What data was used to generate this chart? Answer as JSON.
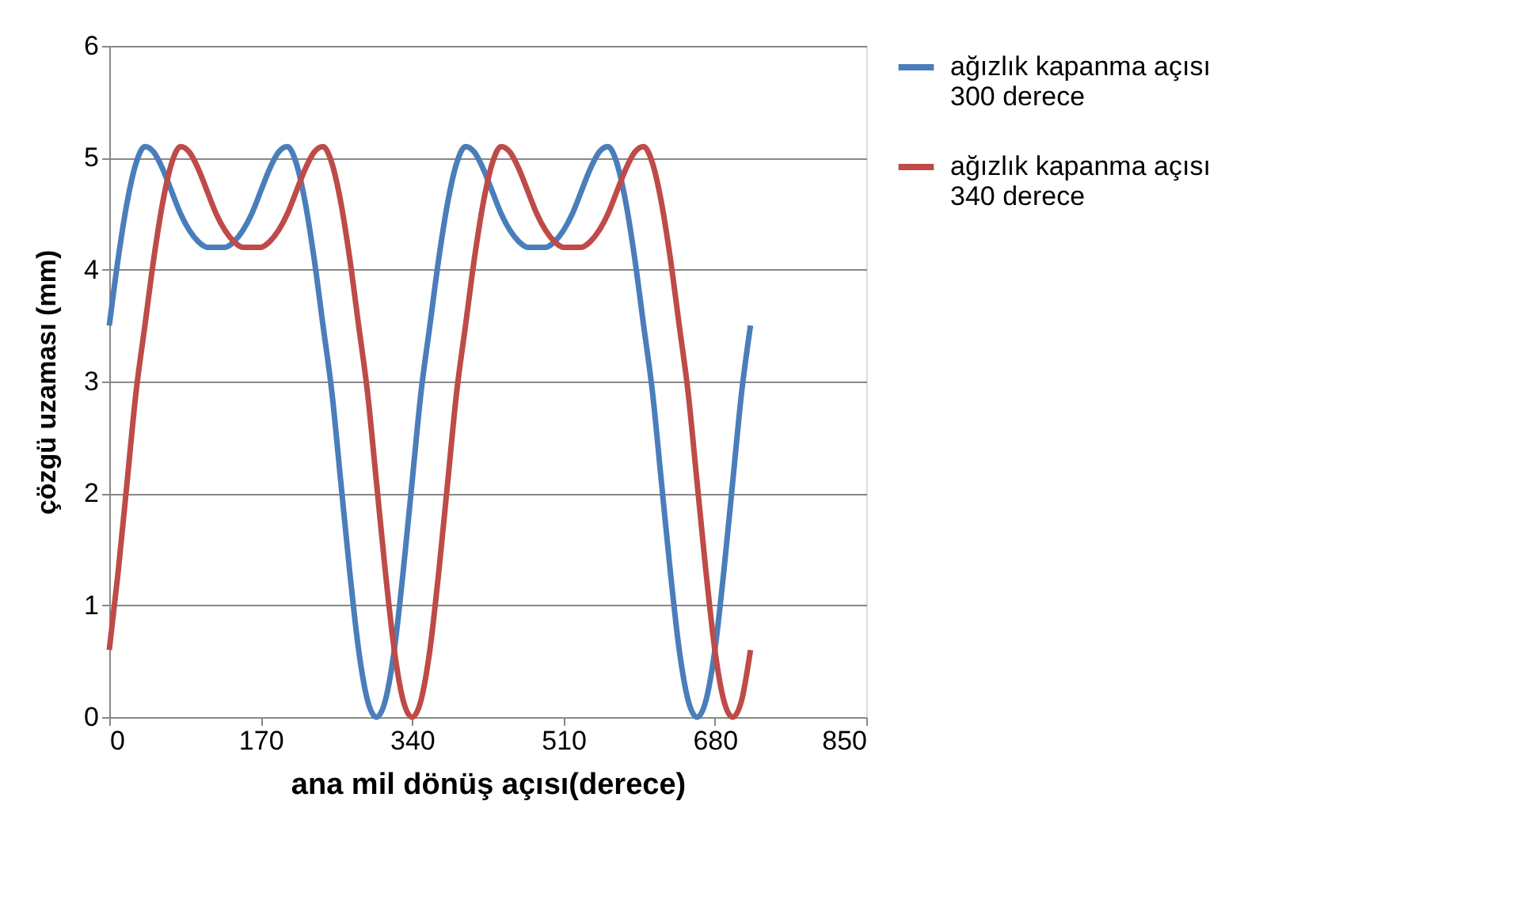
{
  "chart_data": {
    "type": "line",
    "xlabel": "ana mil dönüş açısı(derece)",
    "ylabel": "çözgü uzaması (mm)",
    "xlim": [
      0,
      850
    ],
    "xticks": [
      0,
      170,
      340,
      510,
      680,
      850
    ],
    "ylim": [
      0,
      6
    ],
    "yticks": [
      0,
      1,
      2,
      3,
      4,
      5,
      6
    ],
    "grid": "y",
    "legend": "right",
    "marker": "none",
    "line_style": "solid",
    "x": [
      0,
      10,
      20,
      30,
      40,
      50,
      60,
      70,
      80,
      90,
      100,
      110,
      120,
      130,
      140,
      150,
      160,
      170,
      180,
      190,
      200,
      210,
      220,
      230,
      240,
      250,
      260,
      270,
      280,
      290,
      300,
      310,
      320,
      330,
      340,
      350,
      360,
      370,
      380,
      390,
      400,
      410,
      420,
      430,
      440,
      450,
      460,
      470,
      480,
      490,
      500,
      510,
      520,
      530,
      540,
      550,
      560,
      570,
      580,
      590,
      600,
      610,
      620,
      630,
      640,
      650,
      660,
      670,
      680,
      690,
      700,
      710,
      720
    ],
    "series": [
      {
        "name": "ağızlık kapanma açısı 300 derece",
        "color": "#4a7ebb",
        "values": [
          3.5,
          4.1,
          4.6,
          4.95,
          5.1,
          5.05,
          4.9,
          4.7,
          4.5,
          4.35,
          4.25,
          4.2,
          4.2,
          4.2,
          4.25,
          4.35,
          4.5,
          4.7,
          4.9,
          5.05,
          5.1,
          4.95,
          4.6,
          4.1,
          3.5,
          2.9,
          2.1,
          1.3,
          0.6,
          0.15,
          0,
          0.15,
          0.6,
          1.3,
          2.1,
          2.9,
          3.5,
          4.1,
          4.6,
          4.95,
          5.1,
          5.05,
          4.9,
          4.7,
          4.5,
          4.35,
          4.25,
          4.2,
          4.2,
          4.2,
          4.25,
          4.35,
          4.5,
          4.7,
          4.9,
          5.05,
          5.1,
          4.95,
          4.6,
          4.1,
          3.5,
          2.9,
          2.1,
          1.3,
          0.6,
          0.15,
          0,
          0.15,
          0.6,
          1.3,
          2.1,
          2.9,
          3.5
        ]
      },
      {
        "name": "ağızlık kapanma açısı 340 derece",
        "color": "#be4b48",
        "values": [
          0.6,
          1.3,
          2.1,
          2.9,
          3.5,
          4.1,
          4.6,
          4.95,
          5.1,
          5.05,
          4.9,
          4.7,
          4.5,
          4.35,
          4.25,
          4.2,
          4.2,
          4.2,
          4.25,
          4.35,
          4.5,
          4.7,
          4.9,
          5.05,
          5.1,
          4.95,
          4.6,
          4.1,
          3.5,
          2.9,
          2.1,
          1.3,
          0.6,
          0.15,
          0,
          0.15,
          0.6,
          1.3,
          2.1,
          2.9,
          3.5,
          4.1,
          4.6,
          4.95,
          5.1,
          5.05,
          4.9,
          4.7,
          4.5,
          4.35,
          4.25,
          4.2,
          4.2,
          4.2,
          4.25,
          4.35,
          4.5,
          4.7,
          4.9,
          5.05,
          5.1,
          4.95,
          4.6,
          4.1,
          3.5,
          2.9,
          2.1,
          1.3,
          0.6,
          0.15,
          0,
          0.15,
          0.6
        ]
      }
    ]
  }
}
